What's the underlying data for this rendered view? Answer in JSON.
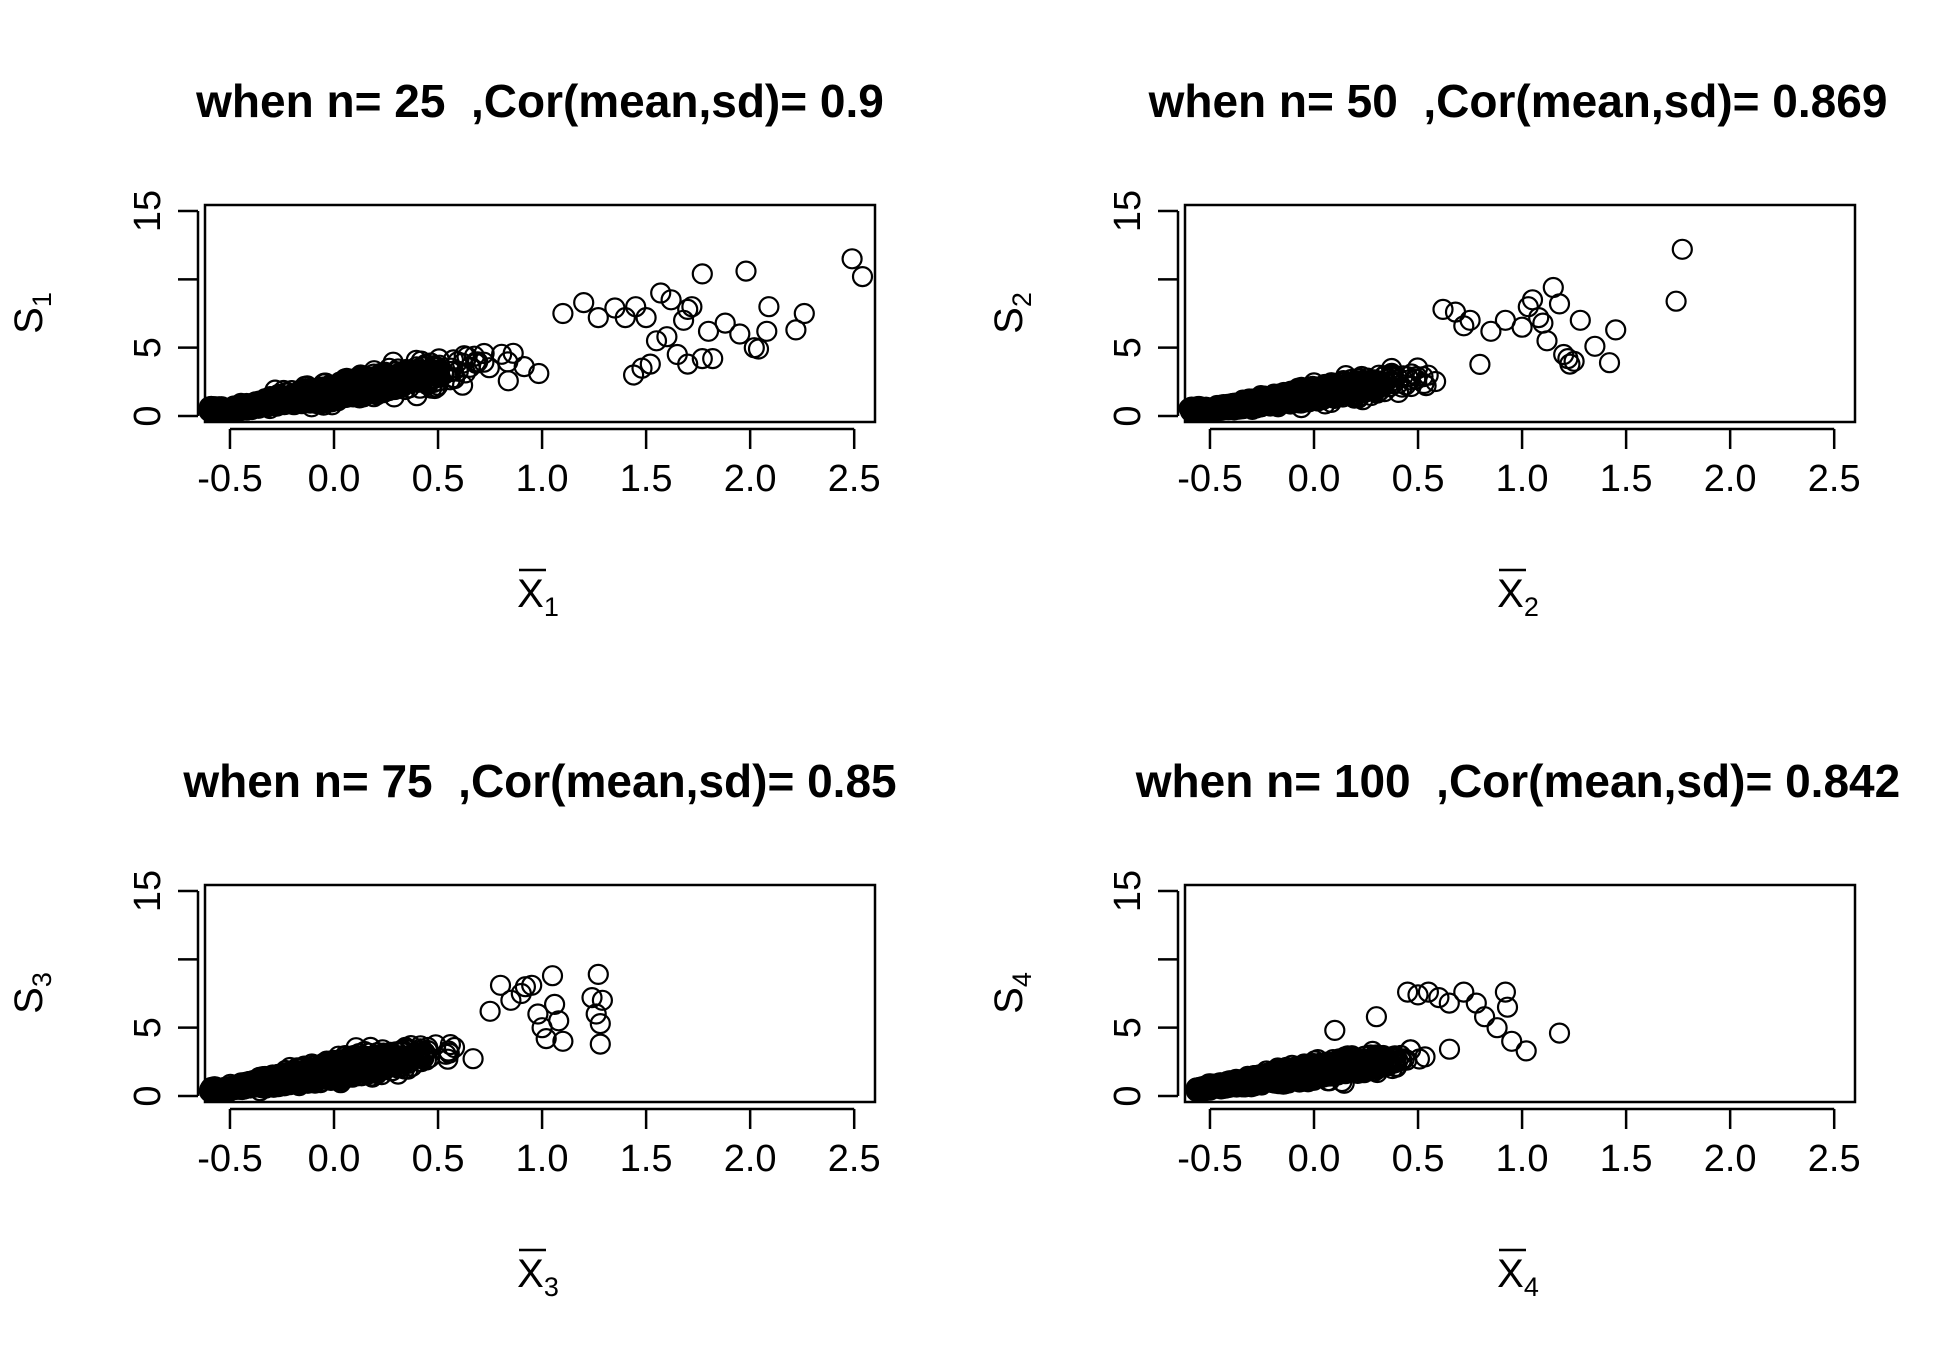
{
  "chart_data": [
    {
      "type": "scatter",
      "title": "when n= 25  ,Cor(mean,sd)= 0.9",
      "xlabel": "X",
      "xlabel_sub": "1",
      "ylabel": "S",
      "ylabel_sub": "1",
      "xlim": [
        -0.62,
        2.6
      ],
      "ylim": [
        0,
        15
      ],
      "xticks": [
        "-0.5",
        "0.0",
        "0.5",
        "1.0",
        "1.5",
        "2.0",
        "2.5"
      ],
      "yticks": [
        "0",
        "5",
        "15"
      ],
      "grid": false,
      "point_cloud": {
        "n": 1500,
        "mean": -0.1,
        "sd": 0.32,
        "x_min": -0.6,
        "x_max": 1.45,
        "slope": 2.7,
        "intercept": 1.8,
        "noise": 0.5
      },
      "points": [
        [
          1.1,
          7.5
        ],
        [
          1.2,
          8.3
        ],
        [
          1.27,
          7.2
        ],
        [
          1.35,
          7.9
        ],
        [
          1.4,
          7.2
        ],
        [
          1.45,
          8.0
        ],
        [
          1.5,
          7.2
        ],
        [
          1.57,
          9.0
        ],
        [
          1.62,
          8.5
        ],
        [
          1.7,
          7.8
        ],
        [
          1.72,
          8.0
        ],
        [
          1.77,
          10.4
        ],
        [
          1.8,
          6.2
        ],
        [
          1.68,
          7.0
        ],
        [
          1.6,
          5.8
        ],
        [
          1.55,
          5.5
        ],
        [
          1.65,
          4.5
        ],
        [
          1.77,
          4.2
        ],
        [
          1.82,
          4.2
        ],
        [
          1.7,
          3.8
        ],
        [
          1.52,
          3.8
        ],
        [
          1.48,
          3.5
        ],
        [
          1.44,
          3.0
        ],
        [
          1.88,
          6.8
        ],
        [
          1.95,
          6.0
        ],
        [
          1.98,
          10.6
        ],
        [
          2.02,
          5.0
        ],
        [
          2.04,
          4.9
        ],
        [
          2.08,
          6.2
        ],
        [
          2.09,
          8.0
        ],
        [
          2.22,
          6.3
        ],
        [
          2.26,
          7.5
        ],
        [
          2.49,
          11.5
        ],
        [
          2.54,
          10.2
        ]
      ]
    },
    {
      "type": "scatter",
      "title": "when n= 50  ,Cor(mean,sd)= 0.869",
      "xlabel": "X",
      "xlabel_sub": "2",
      "ylabel": "S",
      "ylabel_sub": "2",
      "xlim": [
        -0.62,
        2.6
      ],
      "ylim": [
        0,
        15
      ],
      "xticks": [
        "-0.5",
        "0.0",
        "0.5",
        "1.0",
        "1.5",
        "2.0",
        "2.5"
      ],
      "yticks": [
        "0",
        "5",
        "15"
      ],
      "grid": false,
      "point_cloud": {
        "n": 1500,
        "mean": -0.15,
        "sd": 0.25,
        "x_min": -0.6,
        "x_max": 1.05,
        "slope": 2.3,
        "intercept": 1.6,
        "noise": 0.45
      },
      "points": [
        [
          0.62,
          7.8
        ],
        [
          0.68,
          7.6
        ],
        [
          0.72,
          6.6
        ],
        [
          0.75,
          7.0
        ],
        [
          0.85,
          6.2
        ],
        [
          0.92,
          7.0
        ],
        [
          1.0,
          6.5
        ],
        [
          1.03,
          8.0
        ],
        [
          1.05,
          8.5
        ],
        [
          1.08,
          7.2
        ],
        [
          1.1,
          6.8
        ],
        [
          1.12,
          5.5
        ],
        [
          1.15,
          9.4
        ],
        [
          1.18,
          8.2
        ],
        [
          1.2,
          4.5
        ],
        [
          1.22,
          4.2
        ],
        [
          1.23,
          3.8
        ],
        [
          1.25,
          4.0
        ],
        [
          1.28,
          7.0
        ],
        [
          1.35,
          5.1
        ],
        [
          1.42,
          3.9
        ],
        [
          1.45,
          6.3
        ],
        [
          1.74,
          8.4
        ],
        [
          1.77,
          12.2
        ]
      ]
    },
    {
      "type": "scatter",
      "title": "when n= 75  ,Cor(mean,sd)= 0.85",
      "xlabel": "X",
      "xlabel_sub": "3",
      "ylabel": "S",
      "ylabel_sub": "3",
      "xlim": [
        -0.62,
        2.6
      ],
      "ylim": [
        0,
        15
      ],
      "xticks": [
        "-0.5",
        "0.0",
        "0.5",
        "1.0",
        "1.5",
        "2.0",
        "2.5"
      ],
      "yticks": [
        "0",
        "5",
        "15"
      ],
      "grid": false,
      "point_cloud": {
        "n": 1500,
        "mean": -0.12,
        "sd": 0.24,
        "x_min": -0.6,
        "x_max": 0.7,
        "slope": 2.7,
        "intercept": 1.9,
        "noise": 0.5
      },
      "points": [
        [
          0.75,
          6.2
        ],
        [
          0.8,
          8.1
        ],
        [
          0.85,
          7.0
        ],
        [
          0.9,
          7.5
        ],
        [
          0.92,
          8.0
        ],
        [
          0.95,
          8.1
        ],
        [
          0.98,
          6.0
        ],
        [
          1.0,
          5.0
        ],
        [
          1.02,
          4.2
        ],
        [
          1.05,
          8.8
        ],
        [
          1.06,
          6.7
        ],
        [
          1.08,
          5.5
        ],
        [
          1.1,
          4.0
        ],
        [
          1.24,
          7.2
        ],
        [
          1.26,
          6.0
        ],
        [
          1.27,
          8.9
        ],
        [
          1.28,
          5.3
        ],
        [
          1.29,
          7.0
        ],
        [
          1.28,
          3.8
        ]
      ]
    },
    {
      "type": "scatter",
      "title": "when n= 100  ,Cor(mean,sd)= 0.842",
      "xlabel": "X",
      "xlabel_sub": "4",
      "ylabel": "S",
      "ylabel_sub": "4",
      "xlim": [
        -0.62,
        2.6
      ],
      "ylim": [
        0,
        15
      ],
      "xticks": [
        "-0.5",
        "0.0",
        "0.5",
        "1.0",
        "1.5",
        "2.0",
        "2.5"
      ],
      "yticks": [
        "0",
        "5",
        "15"
      ],
      "grid": false,
      "point_cloud": {
        "n": 1500,
        "mean": -0.12,
        "sd": 0.22,
        "x_min": -0.57,
        "x_max": 0.78,
        "slope": 2.3,
        "intercept": 1.8,
        "noise": 0.45
      },
      "points": [
        [
          0.1,
          4.8
        ],
        [
          0.3,
          5.8
        ],
        [
          0.45,
          7.6
        ],
        [
          0.5,
          7.4
        ],
        [
          0.55,
          7.6
        ],
        [
          0.6,
          7.2
        ],
        [
          0.65,
          6.8
        ],
        [
          0.72,
          7.6
        ],
        [
          0.78,
          6.8
        ],
        [
          0.82,
          5.8
        ],
        [
          0.88,
          5.0
        ],
        [
          0.92,
          7.6
        ],
        [
          0.93,
          6.5
        ],
        [
          0.95,
          4.0
        ],
        [
          1.02,
          3.3
        ],
        [
          1.18,
          4.6
        ]
      ]
    }
  ]
}
